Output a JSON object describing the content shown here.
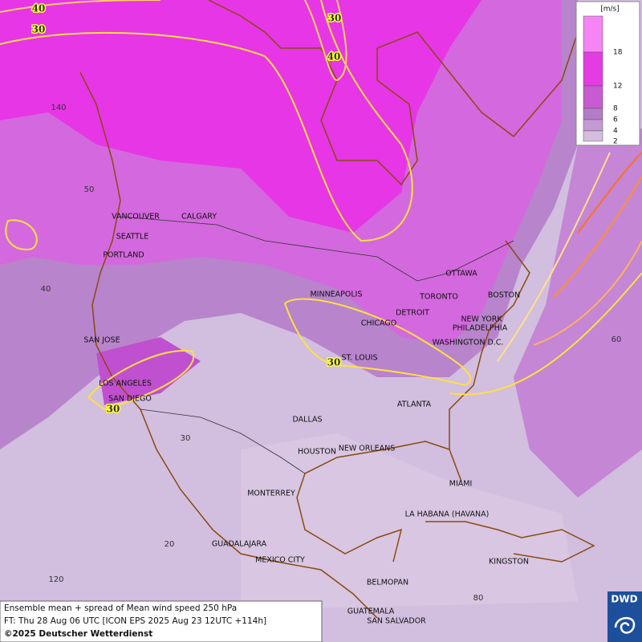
{
  "map": {
    "cities": [
      "VANCOUVER",
      "CALGARY",
      "SEATTLE",
      "PORTLAND",
      "MINNEAPOLIS",
      "TORONTO",
      "OTTAWA",
      "DETROIT",
      "BOSTON",
      "NEW YORK",
      "CHICAGO",
      "PHILADELPHIA",
      "WASHINGTON D.C.",
      "SAN JOSE",
      "ST. LOUIS",
      "LOS ANGELES",
      "SAN DIEGO",
      "DALLAS",
      "ATLANTA",
      "HOUSTON",
      "NEW ORLEANS",
      "MIAMI",
      "MONTERREY",
      "LA HABANA (HAVANA)",
      "GUADALAJARA",
      "MEXICO CITY",
      "KINGSTON",
      "BELMOPAN",
      "GUATEMALA",
      "SAN SALVADOR"
    ],
    "contour_labels": [
      40,
      30,
      30,
      40,
      30,
      30
    ],
    "graticule_labels": [
      140,
      50,
      40,
      30,
      20,
      120,
      60,
      80
    ]
  },
  "legend": {
    "unit": "[m/s]",
    "levels": [
      18,
      12,
      8,
      6,
      4,
      2
    ]
  },
  "footer": {
    "line1": "Ensemble mean + spread of Mean wind speed 250 hPa",
    "line2": "FT: Thu 28 Aug 06 UTC [ICON EPS 2025 Aug 23 12UTC +114h]",
    "copyright": "©2025 Deutscher Wetterdienst"
  },
  "logo": "DWD"
}
